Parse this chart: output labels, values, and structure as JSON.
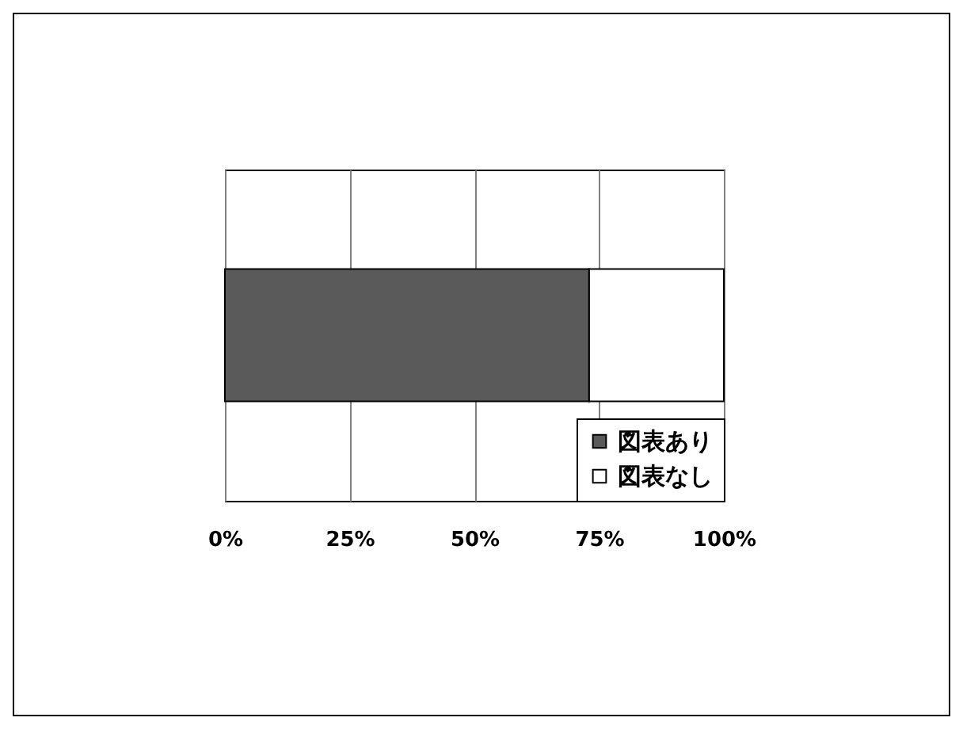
{
  "chart_data": {
    "type": "bar",
    "orientation": "horizontal",
    "stacked": true,
    "categories": [
      null
    ],
    "series": [
      {
        "name": "図表あり",
        "color": "#5a5a5a",
        "values": [
          73
        ]
      },
      {
        "name": "図表なし",
        "color": "#ffffff",
        "values": [
          27
        ]
      }
    ],
    "xlim": [
      0,
      100
    ],
    "xticks": [
      {
        "value": 0,
        "label": "0%"
      },
      {
        "value": 25,
        "label": "25%"
      },
      {
        "value": 50,
        "label": "50%"
      },
      {
        "value": 75,
        "label": "75%"
      },
      {
        "value": 100,
        "label": "100%"
      }
    ],
    "grid": "x",
    "legend": "bottom right",
    "tick_labels": "x"
  }
}
